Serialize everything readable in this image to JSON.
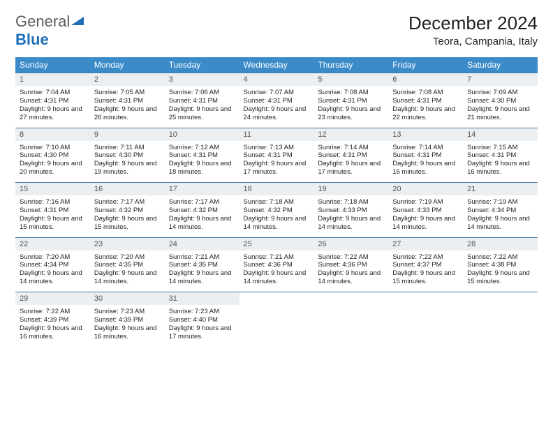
{
  "logo": {
    "word1": "General",
    "word2": "Blue"
  },
  "title": "December 2024",
  "location": "Teora, Campania, Italy",
  "styling": {
    "header_bg": "#3b8bc9",
    "header_text": "#ffffff",
    "daynum_bg": "#eceff1",
    "daynum_text": "#525252",
    "row_divider": "#4a7aa8",
    "body_text": "#222222",
    "month_title_fontsize": 26,
    "location_fontsize": 15,
    "dayhead_fontsize": 12,
    "daynum_fontsize": 11,
    "body_fontsize": 9.5,
    "columns": 7,
    "rows": 5
  },
  "day_headers": [
    "Sunday",
    "Monday",
    "Tuesday",
    "Wednesday",
    "Thursday",
    "Friday",
    "Saturday"
  ],
  "weeks": [
    [
      {
        "n": "1",
        "sr": "Sunrise: 7:04 AM",
        "ss": "Sunset: 4:31 PM",
        "dl": "Daylight: 9 hours and 27 minutes."
      },
      {
        "n": "2",
        "sr": "Sunrise: 7:05 AM",
        "ss": "Sunset: 4:31 PM",
        "dl": "Daylight: 9 hours and 26 minutes."
      },
      {
        "n": "3",
        "sr": "Sunrise: 7:06 AM",
        "ss": "Sunset: 4:31 PM",
        "dl": "Daylight: 9 hours and 25 minutes."
      },
      {
        "n": "4",
        "sr": "Sunrise: 7:07 AM",
        "ss": "Sunset: 4:31 PM",
        "dl": "Daylight: 9 hours and 24 minutes."
      },
      {
        "n": "5",
        "sr": "Sunrise: 7:08 AM",
        "ss": "Sunset: 4:31 PM",
        "dl": "Daylight: 9 hours and 23 minutes."
      },
      {
        "n": "6",
        "sr": "Sunrise: 7:08 AM",
        "ss": "Sunset: 4:31 PM",
        "dl": "Daylight: 9 hours and 22 minutes."
      },
      {
        "n": "7",
        "sr": "Sunrise: 7:09 AM",
        "ss": "Sunset: 4:30 PM",
        "dl": "Daylight: 9 hours and 21 minutes."
      }
    ],
    [
      {
        "n": "8",
        "sr": "Sunrise: 7:10 AM",
        "ss": "Sunset: 4:30 PM",
        "dl": "Daylight: 9 hours and 20 minutes."
      },
      {
        "n": "9",
        "sr": "Sunrise: 7:11 AM",
        "ss": "Sunset: 4:30 PM",
        "dl": "Daylight: 9 hours and 19 minutes."
      },
      {
        "n": "10",
        "sr": "Sunrise: 7:12 AM",
        "ss": "Sunset: 4:31 PM",
        "dl": "Daylight: 9 hours and 18 minutes."
      },
      {
        "n": "11",
        "sr": "Sunrise: 7:13 AM",
        "ss": "Sunset: 4:31 PM",
        "dl": "Daylight: 9 hours and 17 minutes."
      },
      {
        "n": "12",
        "sr": "Sunrise: 7:14 AM",
        "ss": "Sunset: 4:31 PM",
        "dl": "Daylight: 9 hours and 17 minutes."
      },
      {
        "n": "13",
        "sr": "Sunrise: 7:14 AM",
        "ss": "Sunset: 4:31 PM",
        "dl": "Daylight: 9 hours and 16 minutes."
      },
      {
        "n": "14",
        "sr": "Sunrise: 7:15 AM",
        "ss": "Sunset: 4:31 PM",
        "dl": "Daylight: 9 hours and 16 minutes."
      }
    ],
    [
      {
        "n": "15",
        "sr": "Sunrise: 7:16 AM",
        "ss": "Sunset: 4:31 PM",
        "dl": "Daylight: 9 hours and 15 minutes."
      },
      {
        "n": "16",
        "sr": "Sunrise: 7:17 AM",
        "ss": "Sunset: 4:32 PM",
        "dl": "Daylight: 9 hours and 15 minutes."
      },
      {
        "n": "17",
        "sr": "Sunrise: 7:17 AM",
        "ss": "Sunset: 4:32 PM",
        "dl": "Daylight: 9 hours and 14 minutes."
      },
      {
        "n": "18",
        "sr": "Sunrise: 7:18 AM",
        "ss": "Sunset: 4:32 PM",
        "dl": "Daylight: 9 hours and 14 minutes."
      },
      {
        "n": "19",
        "sr": "Sunrise: 7:18 AM",
        "ss": "Sunset: 4:33 PM",
        "dl": "Daylight: 9 hours and 14 minutes."
      },
      {
        "n": "20",
        "sr": "Sunrise: 7:19 AM",
        "ss": "Sunset: 4:33 PM",
        "dl": "Daylight: 9 hours and 14 minutes."
      },
      {
        "n": "21",
        "sr": "Sunrise: 7:19 AM",
        "ss": "Sunset: 4:34 PM",
        "dl": "Daylight: 9 hours and 14 minutes."
      }
    ],
    [
      {
        "n": "22",
        "sr": "Sunrise: 7:20 AM",
        "ss": "Sunset: 4:34 PM",
        "dl": "Daylight: 9 hours and 14 minutes."
      },
      {
        "n": "23",
        "sr": "Sunrise: 7:20 AM",
        "ss": "Sunset: 4:35 PM",
        "dl": "Daylight: 9 hours and 14 minutes."
      },
      {
        "n": "24",
        "sr": "Sunrise: 7:21 AM",
        "ss": "Sunset: 4:35 PM",
        "dl": "Daylight: 9 hours and 14 minutes."
      },
      {
        "n": "25",
        "sr": "Sunrise: 7:21 AM",
        "ss": "Sunset: 4:36 PM",
        "dl": "Daylight: 9 hours and 14 minutes."
      },
      {
        "n": "26",
        "sr": "Sunrise: 7:22 AM",
        "ss": "Sunset: 4:36 PM",
        "dl": "Daylight: 9 hours and 14 minutes."
      },
      {
        "n": "27",
        "sr": "Sunrise: 7:22 AM",
        "ss": "Sunset: 4:37 PM",
        "dl": "Daylight: 9 hours and 15 minutes."
      },
      {
        "n": "28",
        "sr": "Sunrise: 7:22 AM",
        "ss": "Sunset: 4:38 PM",
        "dl": "Daylight: 9 hours and 15 minutes."
      }
    ],
    [
      {
        "n": "29",
        "sr": "Sunrise: 7:22 AM",
        "ss": "Sunset: 4:39 PM",
        "dl": "Daylight: 9 hours and 16 minutes."
      },
      {
        "n": "30",
        "sr": "Sunrise: 7:23 AM",
        "ss": "Sunset: 4:39 PM",
        "dl": "Daylight: 9 hours and 16 minutes."
      },
      {
        "n": "31",
        "sr": "Sunrise: 7:23 AM",
        "ss": "Sunset: 4:40 PM",
        "dl": "Daylight: 9 hours and 17 minutes."
      },
      null,
      null,
      null,
      null
    ]
  ]
}
